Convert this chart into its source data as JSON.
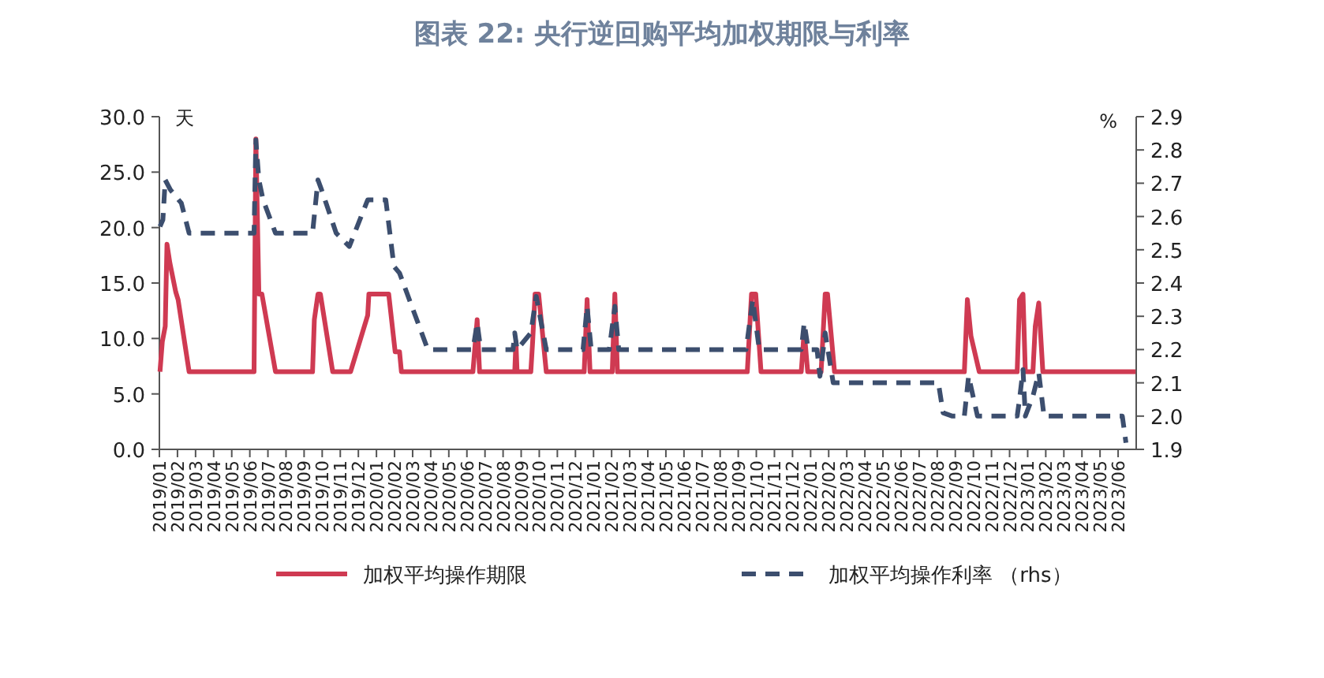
{
  "chart_data": {
    "type": "line",
    "title": "图表 22: 央行逆回购平均加权期限与利率",
    "ylabel": "天",
    "y2label": "%",
    "legend": "bottom",
    "grid": false,
    "marker": "none",
    "xlim": [
      "2019-01",
      "2023-07"
    ],
    "xticks": [
      {
        "value": "2019-01",
        "label": "2019/01"
      },
      {
        "value": "2019-02",
        "label": "2019/02"
      },
      {
        "value": "2019-03",
        "label": "2019/03"
      },
      {
        "value": "2019-04",
        "label": "2019/04"
      },
      {
        "value": "2019-05",
        "label": "2019/05"
      },
      {
        "value": "2019-06",
        "label": "2019/06"
      },
      {
        "value": "2019-07",
        "label": "2019/07"
      },
      {
        "value": "2019-08",
        "label": "2019/08"
      },
      {
        "value": "2019-09",
        "label": "2019/09"
      },
      {
        "value": "2019-10",
        "label": "2019/10"
      },
      {
        "value": "2019-11",
        "label": "2019/11"
      },
      {
        "value": "2019-12",
        "label": "2019/12"
      },
      {
        "value": "2020-01",
        "label": "2020/01"
      },
      {
        "value": "2020-02",
        "label": "2020/02"
      },
      {
        "value": "2020-03",
        "label": "2020/03"
      },
      {
        "value": "2020-04",
        "label": "2020/04"
      },
      {
        "value": "2020-05",
        "label": "2020/05"
      },
      {
        "value": "2020-06",
        "label": "2020/06"
      },
      {
        "value": "2020-07",
        "label": "2020/07"
      },
      {
        "value": "2020-08",
        "label": "2020/08"
      },
      {
        "value": "2020-09",
        "label": "2020/09"
      },
      {
        "value": "2020-10",
        "label": "2020/10"
      },
      {
        "value": "2020-11",
        "label": "2020/11"
      },
      {
        "value": "2020-12",
        "label": "2020/12"
      },
      {
        "value": "2021-01",
        "label": "2021/01"
      },
      {
        "value": "2021-02",
        "label": "2021/02"
      },
      {
        "value": "2021-03",
        "label": "2021/03"
      },
      {
        "value": "2021-04",
        "label": "2021/04"
      },
      {
        "value": "2021-05",
        "label": "2021/05"
      },
      {
        "value": "2021-06",
        "label": "2021/06"
      },
      {
        "value": "2021-07",
        "label": "2021/07"
      },
      {
        "value": "2021-08",
        "label": "2021/08"
      },
      {
        "value": "2021-09",
        "label": "2021/09"
      },
      {
        "value": "2021-10",
        "label": "2021/10"
      },
      {
        "value": "2021-11",
        "label": "2021/11"
      },
      {
        "value": "2021-12",
        "label": "2021/12"
      },
      {
        "value": "2022-01",
        "label": "2022/01"
      },
      {
        "value": "2022-02",
        "label": "2022/02"
      },
      {
        "value": "2022-03",
        "label": "2022/03"
      },
      {
        "value": "2022-04",
        "label": "2022/04"
      },
      {
        "value": "2022-05",
        "label": "2022/05"
      },
      {
        "value": "2022-06",
        "label": "2022/06"
      },
      {
        "value": "2022-07",
        "label": "2022/07"
      },
      {
        "value": "2022-08",
        "label": "2022/08"
      },
      {
        "value": "2022-09",
        "label": "2022/09"
      },
      {
        "value": "2022-10",
        "label": "2022/10"
      },
      {
        "value": "2022-11",
        "label": "2022/11"
      },
      {
        "value": "2022-12",
        "label": "2022/12"
      },
      {
        "value": "2023-01",
        "label": "2023/01"
      },
      {
        "value": "2023-02",
        "label": "2023/02"
      },
      {
        "value": "2023-03",
        "label": "2023/03"
      },
      {
        "value": "2023-04",
        "label": "2023/04"
      },
      {
        "value": "2023-05",
        "label": "2023/05"
      },
      {
        "value": "2023-06",
        "label": "2023/06"
      }
    ],
    "ylim": [
      0,
      30
    ],
    "yticks": [
      {
        "value": 0,
        "label": "0.0"
      },
      {
        "value": 5,
        "label": "5.0"
      },
      {
        "value": 10,
        "label": "10.0"
      },
      {
        "value": 15,
        "label": "15.0"
      },
      {
        "value": 20,
        "label": "20.0"
      },
      {
        "value": 25,
        "label": "25.0"
      },
      {
        "value": 30,
        "label": "30.0"
      }
    ],
    "y2lim": [
      1.9,
      2.9
    ],
    "y2ticks": [
      {
        "value": 1.9,
        "label": "1.9"
      },
      {
        "value": 2.0,
        "label": "2.0"
      },
      {
        "value": 2.1,
        "label": "2.1"
      },
      {
        "value": 2.2,
        "label": "2.2"
      },
      {
        "value": 2.3,
        "label": "2.3"
      },
      {
        "value": 2.4,
        "label": "2.4"
      },
      {
        "value": 2.5,
        "label": "2.5"
      },
      {
        "value": 2.6,
        "label": "2.6"
      },
      {
        "value": 2.7,
        "label": "2.7"
      },
      {
        "value": 2.8,
        "label": "2.8"
      },
      {
        "value": 2.9,
        "label": "2.9"
      }
    ],
    "series": [
      {
        "name": "加权平均操作期限",
        "color": "#cf3a52",
        "line_style": "solid",
        "x": [
          "2019-01-02",
          "2019-01-06",
          "2019-01-11",
          "2019-01-14",
          "2019-01-19",
          "2019-01-29",
          "2019-02-02",
          "2019-02-19",
          "2019-06-08",
          "2019-06-11",
          "2019-06-16",
          "2019-06-21",
          "2019-07-14",
          "2019-09-15",
          "2019-09-18",
          "2019-09-24",
          "2019-09-28",
          "2019-10-19",
          "2019-11-18",
          "2019-12-17",
          "2019-12-19",
          "2020-01-22",
          "2020-02-02",
          "2020-02-09",
          "2020-02-12",
          "2020-06-11",
          "2020-06-18",
          "2020-06-22",
          "2020-08-21",
          "2020-08-23",
          "2020-08-25",
          "2020-09-17",
          "2020-09-20",
          "2020-09-24",
          "2020-09-30",
          "2020-10-13",
          "2020-12-16",
          "2020-12-21",
          "2020-12-26",
          "2021-02-02",
          "2021-02-06",
          "2021-02-10",
          "2021-09-16",
          "2021-09-23",
          "2021-09-30",
          "2021-10-09",
          "2021-12-16",
          "2021-12-21",
          "2021-12-27",
          "2022-01-19",
          "2022-01-26",
          "2022-01-30",
          "2022-02-10",
          "2022-09-16",
          "2022-09-21",
          "2022-09-27",
          "2022-10-11",
          "2022-12-14",
          "2022-12-18",
          "2022-12-24",
          "2022-12-28",
          "2023-01-10",
          "2023-01-14",
          "2023-01-20",
          "2023-01-27",
          "2023-06-30"
        ],
        "values": [
          7.0,
          9.7,
          11.1,
          18.5,
          16.8,
          14.2,
          13.5,
          7.0,
          7.0,
          28.0,
          14.0,
          14.0,
          7.0,
          7.0,
          11.7,
          14.0,
          14.0,
          7.0,
          7.0,
          12.1,
          14.0,
          14.0,
          8.8,
          8.8,
          7.0,
          7.0,
          11.7,
          7.0,
          7.0,
          9.7,
          7.0,
          7.0,
          9.7,
          14.0,
          14.0,
          7.0,
          7.0,
          13.5,
          7.0,
          7.0,
          14.0,
          7.0,
          7.0,
          14.0,
          14.0,
          7.0,
          7.0,
          10.7,
          7.0,
          7.0,
          14.0,
          14.0,
          7.0,
          7.0,
          13.5,
          10.2,
          7.0,
          7.0,
          13.5,
          14.0,
          7.0,
          7.0,
          11.1,
          13.2,
          7.0,
          7.0
        ]
      },
      {
        "name": "加权平均操作利率 （rhs）",
        "color": "#3c4e6e",
        "line_style": "dashed",
        "axis": "y2",
        "x": [
          "2019-01-02",
          "2019-01-07",
          "2019-01-11",
          "2019-01-20",
          "2019-02-07",
          "2019-02-19",
          "2019-06-08",
          "2019-06-11",
          "2019-06-16",
          "2019-06-23",
          "2019-07-14",
          "2019-09-15",
          "2019-09-24",
          "2019-09-30",
          "2019-10-25",
          "2019-11-16",
          "2019-12-17",
          "2020-01-17",
          "2020-01-31",
          "2020-02-09",
          "2020-03-27",
          "2020-06-11",
          "2020-06-18",
          "2020-06-24",
          "2020-08-18",
          "2020-08-21",
          "2020-08-25",
          "2020-09-17",
          "2020-09-26",
          "2020-10-13",
          "2020-12-14",
          "2020-12-21",
          "2020-12-28",
          "2021-01-28",
          "2021-02-06",
          "2021-02-12",
          "2021-09-14",
          "2021-09-25",
          "2021-10-06",
          "2021-12-16",
          "2021-12-21",
          "2021-12-28",
          "2022-01-12",
          "2022-01-17",
          "2022-01-26",
          "2022-02-08",
          "2022-08-03",
          "2022-08-11",
          "2022-08-27",
          "2022-09-16",
          "2022-09-23",
          "2022-10-08",
          "2022-12-14",
          "2022-12-18",
          "2022-12-24",
          "2022-12-28",
          "2023-01-10",
          "2023-01-20",
          "2023-01-29",
          "2023-06-08",
          "2023-06-14"
        ],
        "values": [
          2.57,
          2.59,
          2.71,
          2.68,
          2.64,
          2.55,
          2.55,
          2.83,
          2.71,
          2.65,
          2.55,
          2.55,
          2.71,
          2.68,
          2.55,
          2.51,
          2.65,
          2.65,
          2.45,
          2.43,
          2.2,
          2.2,
          2.28,
          2.2,
          2.2,
          2.25,
          2.2,
          2.25,
          2.36,
          2.2,
          2.2,
          2.33,
          2.2,
          2.2,
          2.33,
          2.2,
          2.2,
          2.35,
          2.2,
          2.2,
          2.28,
          2.2,
          2.2,
          2.12,
          2.25,
          2.1,
          2.1,
          2.01,
          2.0,
          2.0,
          2.12,
          2.0,
          2.0,
          2.05,
          2.14,
          2.0,
          2.06,
          2.13,
          2.0,
          2.0,
          1.92
        ]
      }
    ]
  }
}
